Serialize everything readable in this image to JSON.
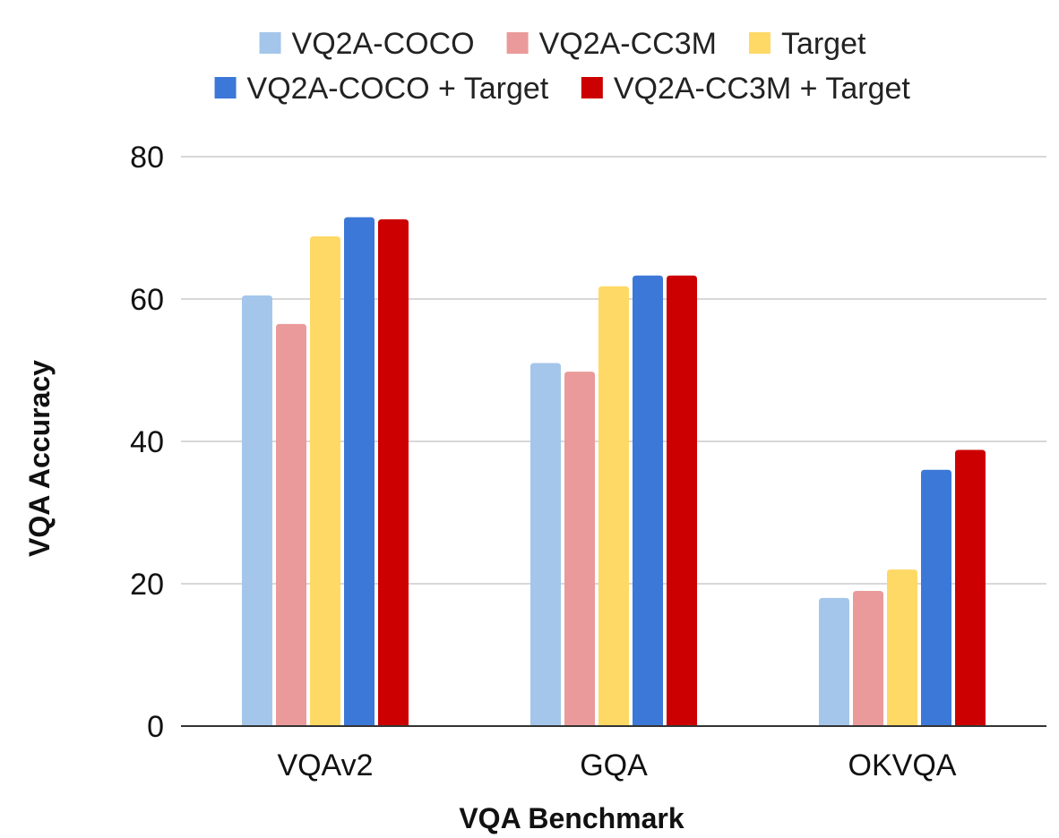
{
  "chart_data": {
    "type": "bar",
    "title": "",
    "xlabel": "VQA Benchmark",
    "ylabel": "VQA Accuracy",
    "ylim": [
      0,
      80
    ],
    "yticks": [
      0,
      20,
      40,
      60,
      80
    ],
    "grid": true,
    "legend_position": "top",
    "categories": [
      "VQAv2",
      "GQA",
      "OKVQA"
    ],
    "series": [
      {
        "name": "VQ2A-COCO",
        "color": "#a4c6ea",
        "values": [
          60.5,
          51.0,
          18.0
        ]
      },
      {
        "name": "VQ2A-CC3M",
        "color": "#ea9a9a",
        "values": [
          56.5,
          49.8,
          19.0
        ]
      },
      {
        "name": "Target",
        "color": "#fed966",
        "values": [
          68.8,
          61.8,
          22.0
        ]
      },
      {
        "name": "VQ2A-COCO + Target",
        "color": "#3c78d8",
        "values": [
          71.5,
          63.3,
          36.0
        ]
      },
      {
        "name": "VQ2A-CC3M + Target",
        "color": "#cc0000",
        "values": [
          71.2,
          63.3,
          38.8
        ]
      }
    ]
  }
}
